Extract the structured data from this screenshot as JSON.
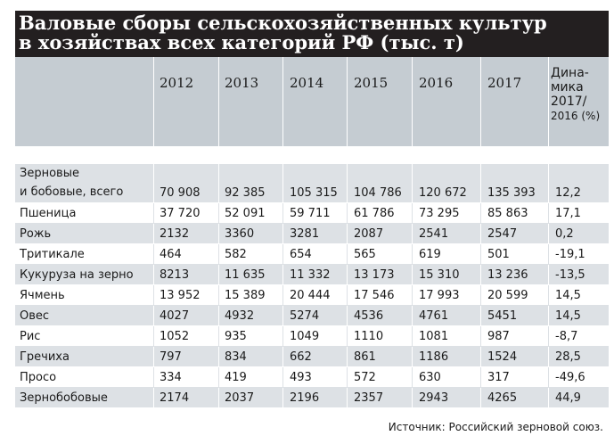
{
  "title": {
    "line1": "Валовые сборы сельскохозяйственных культур",
    "line2": "в хозяйствах всех категорий РФ (тыс. т)"
  },
  "header": {
    "years": [
      "2012",
      "2013",
      "2014",
      "2015",
      "2016",
      "2017"
    ],
    "dynamics": [
      "Дина-",
      "мика",
      "2017/",
      "2016 (%)"
    ]
  },
  "chart_data": {
    "type": "table",
    "title": "Валовые сборы сельскохозяйственных культур в хозяйствах всех категорий РФ (тыс. т)",
    "columns": [
      "2012",
      "2013",
      "2014",
      "2015",
      "2016",
      "2017",
      "Динамика 2017/2016 (%)"
    ],
    "rows": [
      {
        "name": "Зерновые и бобовые, всего",
        "name_lines": [
          "Зерновые",
          "и бобовые, всего"
        ],
        "values": [
          "70 908",
          "92 385",
          "105 315",
          "104 786",
          "120 672",
          "135 393",
          "12,2"
        ]
      },
      {
        "name": "Пшеница",
        "values": [
          "37 720",
          "52 091",
          "59 711",
          "61 786",
          "73 295",
          "85 863",
          "17,1"
        ]
      },
      {
        "name": "Рожь",
        "values": [
          "2132",
          "3360",
          "3281",
          "2087",
          "2541",
          "2547",
          "0,2"
        ]
      },
      {
        "name": "Тритикале",
        "values": [
          "464",
          "582",
          "654",
          "565",
          "619",
          "501",
          "-19,1"
        ]
      },
      {
        "name": "Кукуруза на зерно",
        "values": [
          "8213",
          "11 635",
          "11 332",
          "13 173",
          "15 310",
          "13 236",
          "-13,5"
        ]
      },
      {
        "name": "Ячмень",
        "values": [
          "13 952",
          "15 389",
          "20 444",
          "17 546",
          "17 993",
          "20 599",
          "14,5"
        ]
      },
      {
        "name": "Овес",
        "values": [
          "4027",
          "4932",
          "5274",
          "4536",
          "4761",
          "5451",
          "14,5"
        ]
      },
      {
        "name": "Рис",
        "values": [
          "1052",
          "935",
          "1049",
          "1110",
          "1081",
          "987",
          "-8,7"
        ]
      },
      {
        "name": "Гречиха",
        "values": [
          "797",
          "834",
          "662",
          "861",
          "1186",
          "1524",
          "28,5"
        ]
      },
      {
        "name": "Просо",
        "values": [
          "334",
          "419",
          "493",
          "572",
          "630",
          "317",
          "-49,6"
        ]
      },
      {
        "name": "Зернобобовые",
        "values": [
          "2174",
          "2037",
          "2196",
          "2357",
          "2943",
          "4265",
          "44,9"
        ]
      }
    ]
  },
  "source": "Источник: Российский зерновой союз.",
  "colors": {
    "title_bg": "#231f20",
    "header_bg": "#c5ccd2",
    "row_alt": "#dde1e5"
  }
}
